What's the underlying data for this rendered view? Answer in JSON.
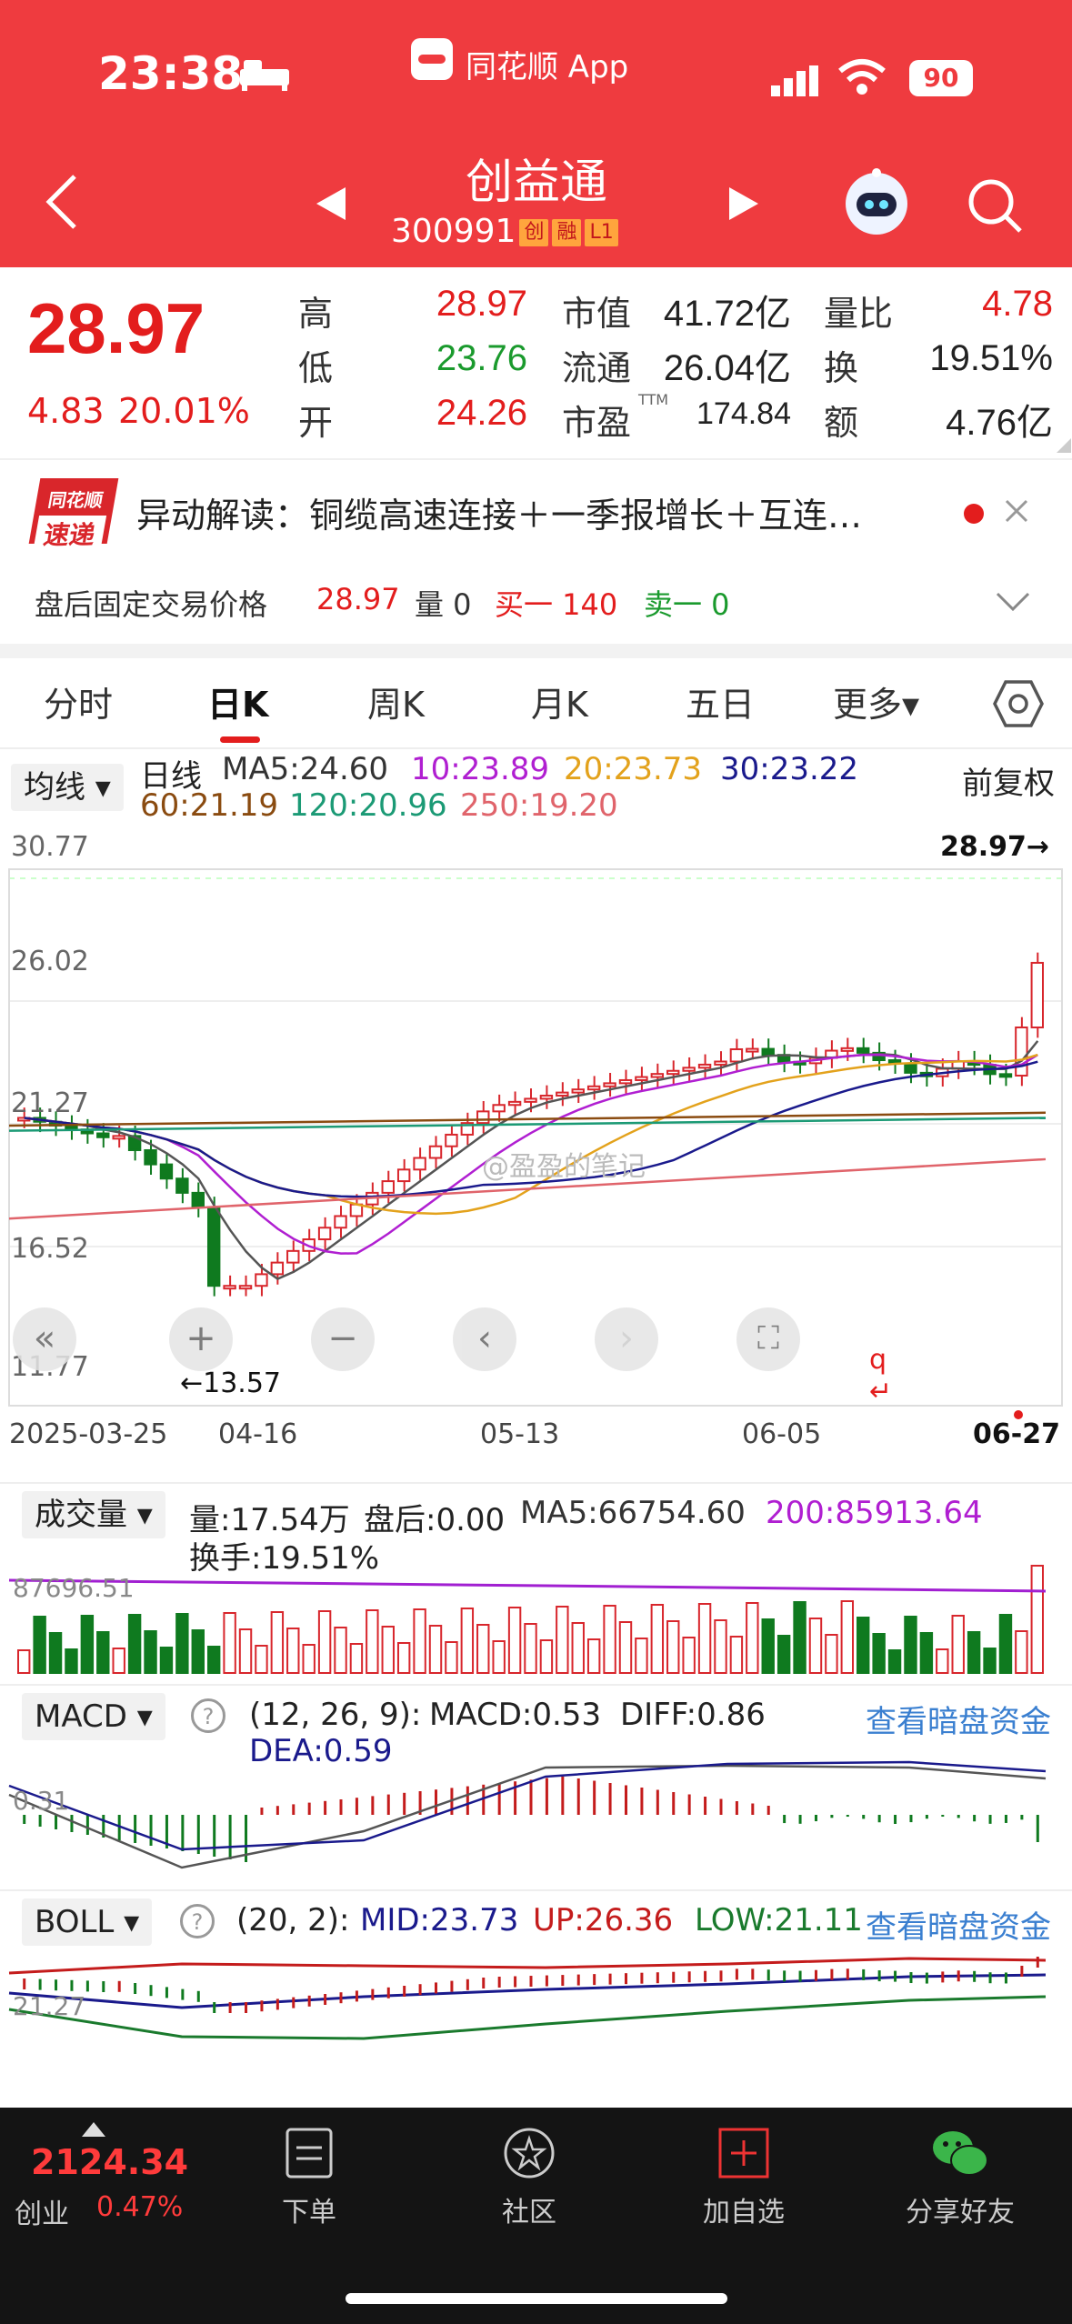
{
  "status": {
    "time": "23:38",
    "app": "同花顺 App",
    "battery": "90"
  },
  "nav": {
    "name": "创益通",
    "code": "300991",
    "tags": [
      "创",
      "融",
      "L1"
    ]
  },
  "quote": {
    "price": "28.97",
    "change": "4.83",
    "pct": "20.01%",
    "high_l": "高",
    "high": "28.97",
    "low_l": "低",
    "low": "23.76",
    "open_l": "开",
    "open": "24.26",
    "mcap_l": "市值",
    "mcap": "41.72亿",
    "float_l": "流通",
    "float": "26.04亿",
    "pe_l": "市盈",
    "pe_sup": "TTM",
    "pe": "174.84",
    "vr_l": "量比",
    "vr": "4.78",
    "turn_l": "换",
    "turn": "19.51%",
    "amt_l": "额",
    "amt": "4.76亿"
  },
  "news": {
    "logo_top": "同花顺",
    "logo_bot": "速递",
    "text": "异动解读：铜缆高速连接＋一季报增长＋互连…"
  },
  "after": {
    "label": "盘后固定交易价格",
    "price": "28.97",
    "vol": "量 0",
    "buy": "买一 140",
    "sell": "卖一 0"
  },
  "tabs": [
    "分时",
    "日K",
    "周K",
    "月K",
    "五日",
    "更多▾"
  ],
  "ma": {
    "chip": "均线 ▾",
    "type": "日线",
    "ma5": "MA5:24.60",
    "ma10": "10:23.89",
    "ma20": "20:23.73",
    "ma30": "30:23.22",
    "ma60": "60:21.19",
    "ma120": "120:20.96",
    "ma250": "250:19.20",
    "adj": "前复权"
  },
  "kline": {
    "y_labels": [
      "30.77",
      "26.02",
      "21.27",
      "16.52",
      "11.77"
    ],
    "last": "28.97→",
    "low_mark": "←13.57",
    "dates": [
      "2025-03-25",
      "04-16",
      "05-13",
      "06-05",
      "06-27"
    ],
    "watermark": "@盈盈的笔记"
  },
  "vol": {
    "chip": "成交量 ▾",
    "v": "量:17.54万",
    "after": "盘后:0.00",
    "ma5": "MA5:66754.60",
    "ma200": "200:85913.64",
    "turn": "换手:19.51%",
    "axis": "87696.51"
  },
  "macd": {
    "chip": "MACD ▾",
    "params": "(12, 26, 9):",
    "macd": "MACD:0.53",
    "diff": "DIFF:0.86",
    "dea": "DEA:0.59",
    "link": "查看暗盘资金",
    "axis": "0.31"
  },
  "boll": {
    "chip": "BOLL ▾",
    "params": "(20, 2):",
    "mid": "MID:23.73",
    "up": "UP:26.36",
    "low": "LOW:21.11",
    "link": "查看暗盘资金",
    "axis": "21.27"
  },
  "bottom": {
    "index": "2124.34",
    "index_name": "创业",
    "index_pct": "0.47%",
    "items": [
      "下单",
      "社区",
      "加自选",
      "分享好友"
    ]
  },
  "colors": {
    "up": "#e31d1d",
    "down": "#1a9a2d",
    "brand": "#ef3b3f"
  }
}
